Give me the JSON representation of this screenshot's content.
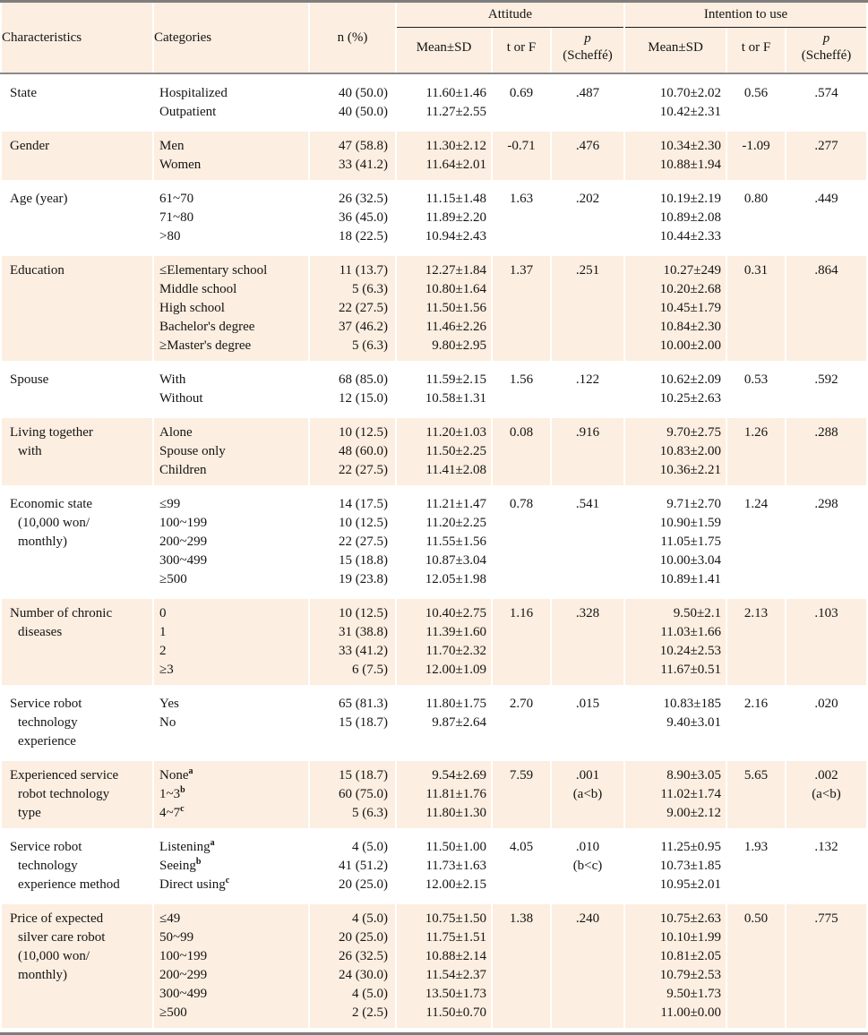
{
  "table": {
    "header": {
      "characteristics": "Characteristics",
      "categories": "Categories",
      "n_pct": "n (%)",
      "attitude": "Attitude",
      "intention": "Intention to use",
      "mean_sd": "Mean±SD",
      "t_or_f": "t or F",
      "p": "p",
      "p_sub": "(Scheffé)"
    },
    "colors": {
      "row_shade": "#fceee0",
      "rule_gray": "#8b8b8b",
      "text": "#141414"
    },
    "groups": [
      {
        "shaded": false,
        "characteristic": [
          "State"
        ],
        "categories": [
          "Hospitalized",
          "Outpatient"
        ],
        "n": [
          "40 (50.0)",
          "40 (50.0)"
        ],
        "attitude": {
          "mean_sd": [
            "11.60±1.46",
            "11.27±2.55"
          ],
          "t": [
            "0.69"
          ],
          "p": [
            ".487"
          ]
        },
        "intention": {
          "mean_sd": [
            "10.70±2.02",
            "10.42±2.31"
          ],
          "t": [
            "0.56"
          ],
          "p": [
            ".574"
          ]
        }
      },
      {
        "shaded": true,
        "characteristic": [
          "Gender"
        ],
        "categories": [
          "Men",
          "Women"
        ],
        "n": [
          "47 (58.8)",
          "33 (41.2)"
        ],
        "attitude": {
          "mean_sd": [
            "11.30±2.12",
            "11.64±2.01"
          ],
          "t": [
            "-0.71"
          ],
          "p": [
            ".476"
          ]
        },
        "intention": {
          "mean_sd": [
            "10.34±2.30",
            "10.88±1.94"
          ],
          "t": [
            "-1.09"
          ],
          "p": [
            ".277"
          ]
        }
      },
      {
        "shaded": false,
        "characteristic": [
          "Age (year)"
        ],
        "categories": [
          "61~70",
          "71~80",
          ">80"
        ],
        "n": [
          "26 (32.5)",
          "36 (45.0)",
          "18 (22.5)"
        ],
        "attitude": {
          "mean_sd": [
            "11.15±1.48",
            "11.89±2.20",
            "10.94±2.43"
          ],
          "t": [
            "1.63"
          ],
          "p": [
            ".202"
          ]
        },
        "intention": {
          "mean_sd": [
            "10.19±2.19",
            "10.89±2.08",
            "10.44±2.33"
          ],
          "t": [
            "0.80"
          ],
          "p": [
            ".449"
          ]
        }
      },
      {
        "shaded": true,
        "characteristic": [
          "Education"
        ],
        "categories": [
          "≤Elementary school",
          "Middle school",
          "High school",
          "Bachelor's degree",
          "≥Master's degree"
        ],
        "n": [
          "11 (13.7)",
          "5 (6.3)",
          "22 (27.5)",
          "37 (46.2)",
          "5 (6.3)"
        ],
        "attitude": {
          "mean_sd": [
            "12.27±1.84",
            "10.80±1.64",
            "11.50±1.56",
            "11.46±2.26",
            "9.80±2.95"
          ],
          "t": [
            "1.37"
          ],
          "p": [
            ".251"
          ]
        },
        "intention": {
          "mean_sd": [
            "10.27±249",
            "10.20±2.68",
            "10.45±1.79",
            "10.84±2.30",
            "10.00±2.00"
          ],
          "t": [
            "0.31"
          ],
          "p": [
            ".864"
          ]
        }
      },
      {
        "shaded": false,
        "characteristic": [
          "Spouse"
        ],
        "categories": [
          "With",
          "Without"
        ],
        "n": [
          "68 (85.0)",
          "12 (15.0)"
        ],
        "attitude": {
          "mean_sd": [
            "11.59±2.15",
            "10.58±1.31"
          ],
          "t": [
            "1.56"
          ],
          "p": [
            ".122"
          ]
        },
        "intention": {
          "mean_sd": [
            "10.62±2.09",
            "10.25±2.63"
          ],
          "t": [
            "0.53"
          ],
          "p": [
            ".592"
          ]
        }
      },
      {
        "shaded": true,
        "characteristic": [
          "Living together",
          "with"
        ],
        "categories": [
          "Alone",
          "Spouse only",
          "Children"
        ],
        "n": [
          "10 (12.5)",
          "48 (60.0)",
          "22 (27.5)"
        ],
        "attitude": {
          "mean_sd": [
            "11.20±1.03",
            "11.50±2.25",
            "11.41±2.08"
          ],
          "t": [
            "0.08"
          ],
          "p": [
            ".916"
          ]
        },
        "intention": {
          "mean_sd": [
            "9.70±2.75",
            "10.83±2.00",
            "10.36±2.21"
          ],
          "t": [
            "1.26"
          ],
          "p": [
            ".288"
          ]
        }
      },
      {
        "shaded": false,
        "characteristic": [
          "Economic state",
          "(10,000 won/",
          "monthly)"
        ],
        "categories": [
          "≤99",
          "100~199",
          "200~299",
          "300~499",
          "≥500"
        ],
        "n": [
          "14 (17.5)",
          "10 (12.5)",
          "22 (27.5)",
          "15 (18.8)",
          "19 (23.8)"
        ],
        "attitude": {
          "mean_sd": [
            "11.21±1.47",
            "11.20±2.25",
            "11.55±1.56",
            "10.87±3.04",
            "12.05±1.98"
          ],
          "t": [
            "0.78"
          ],
          "p": [
            ".541"
          ]
        },
        "intention": {
          "mean_sd": [
            "9.71±2.70",
            "10.90±1.59",
            "11.05±1.75",
            "10.00±3.04",
            "10.89±1.41"
          ],
          "t": [
            "1.24"
          ],
          "p": [
            ".298"
          ]
        }
      },
      {
        "shaded": true,
        "characteristic": [
          "Number of chronic",
          "diseases"
        ],
        "categories": [
          "0",
          "1",
          "2",
          "≥3"
        ],
        "n": [
          "10 (12.5)",
          "31 (38.8)",
          "33 (41.2)",
          "6 (7.5)"
        ],
        "attitude": {
          "mean_sd": [
            "10.40±2.75",
            "11.39±1.60",
            "11.70±2.32",
            "12.00±1.09"
          ],
          "t": [
            "1.16"
          ],
          "p": [
            ".328"
          ]
        },
        "intention": {
          "mean_sd": [
            "9.50±2.1",
            "11.03±1.66",
            "10.24±2.53",
            "11.67±0.51"
          ],
          "t": [
            "2.13"
          ],
          "p": [
            ".103"
          ]
        }
      },
      {
        "shaded": false,
        "characteristic": [
          "Service robot",
          "technology",
          "experience"
        ],
        "categories": [
          "Yes",
          "No"
        ],
        "n": [
          "65 (81.3)",
          "15 (18.7)"
        ],
        "attitude": {
          "mean_sd": [
            "11.80±1.75",
            "9.87±2.64"
          ],
          "t": [
            "2.70"
          ],
          "p": [
            ".015"
          ]
        },
        "intention": {
          "mean_sd": [
            "10.83±185",
            "9.40±3.01"
          ],
          "t": [
            "2.16"
          ],
          "p": [
            ".020"
          ]
        }
      },
      {
        "shaded": true,
        "characteristic": [
          "Experienced service",
          "robot technology",
          "type"
        ],
        "categories": [
          "None^a",
          "1~3^b",
          "4~7^c"
        ],
        "n": [
          "15 (18.7)",
          "60 (75.0)",
          "5 (6.3)"
        ],
        "attitude": {
          "mean_sd": [
            "9.54±2.69",
            "11.81±1.76",
            "11.80±1.30"
          ],
          "t": [
            "7.59"
          ],
          "p": [
            ".001",
            "(a<b)"
          ]
        },
        "intention": {
          "mean_sd": [
            "8.90±3.05",
            "11.02±1.74",
            "9.00±2.12"
          ],
          "t": [
            "5.65"
          ],
          "p": [
            ".002",
            "(a<b)"
          ]
        }
      },
      {
        "shaded": false,
        "characteristic": [
          "Service robot",
          "technology",
          "experience method"
        ],
        "categories": [
          "Listening^a",
          "Seeing^b",
          "Direct using^c"
        ],
        "n": [
          "4 (5.0)",
          "41 (51.2)",
          "20 (25.0)"
        ],
        "attitude": {
          "mean_sd": [
            "11.50±1.00",
            "11.73±1.63",
            "12.00±2.15"
          ],
          "t": [
            "4.05"
          ],
          "p": [
            ".010",
            "(b<c)"
          ]
        },
        "intention": {
          "mean_sd": [
            "11.25±0.95",
            "10.73±1.85",
            "10.95±2.01"
          ],
          "t": [
            "1.93"
          ],
          "p": [
            ".132"
          ]
        }
      },
      {
        "shaded": true,
        "characteristic": [
          "Price of expected",
          "silver care robot",
          "(10,000 won/",
          "monthly)"
        ],
        "categories": [
          "≤49",
          "50~99",
          "100~199",
          "200~299",
          "300~499",
          "≥500"
        ],
        "n": [
          "4 (5.0)",
          "20 (25.0)",
          "26 (32.5)",
          "24 (30.0)",
          "4 (5.0)",
          "2 (2.5)"
        ],
        "attitude": {
          "mean_sd": [
            "10.75±1.50",
            "11.75±1.51",
            "10.88±2.14",
            "11.54±2.37",
            "13.50±1.73",
            "11.50±0.70"
          ],
          "t": [
            "1.38"
          ],
          "p": [
            ".240"
          ]
        },
        "intention": {
          "mean_sd": [
            "10.75±2.63",
            "10.10±1.99",
            "10.81±2.05",
            "10.79±2.53",
            "9.50±1.73",
            "11.00±0.00"
          ],
          "t": [
            "0.50"
          ],
          "p": [
            ".775"
          ]
        }
      }
    ]
  }
}
